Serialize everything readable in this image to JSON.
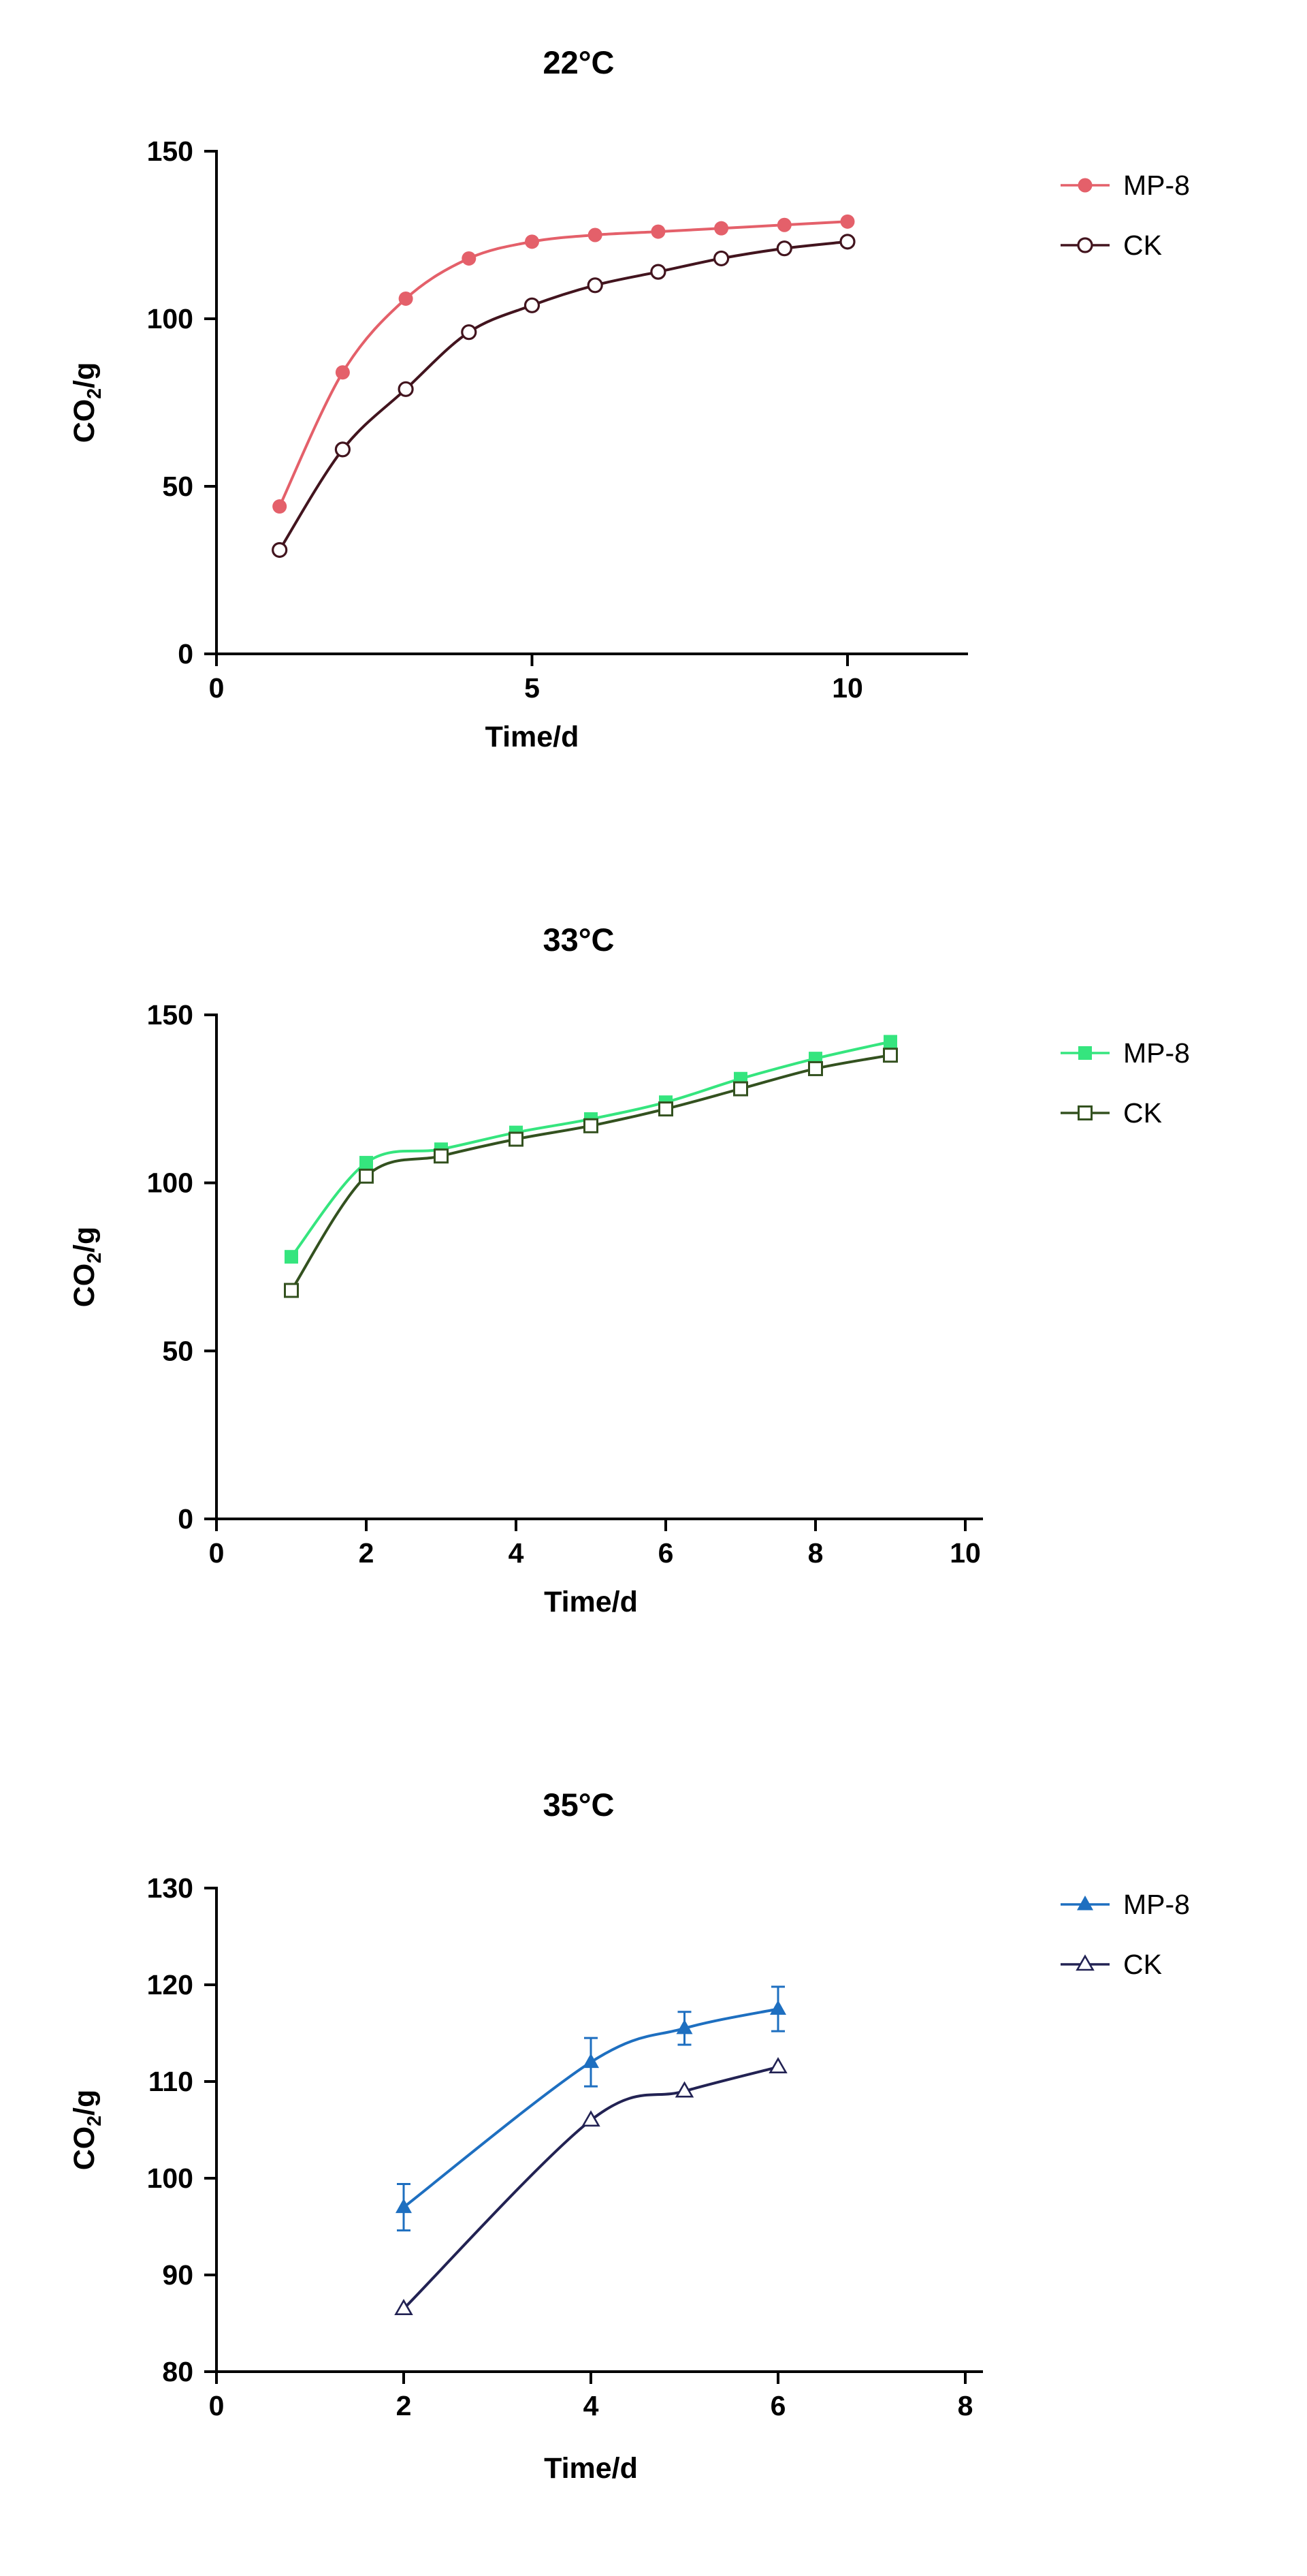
{
  "chart_data": [
    {
      "type": "line",
      "title": "22°C",
      "xlabel": "Time/d",
      "ylabel": {
        "base": "CO",
        "sub": "2",
        "rest": "/g"
      },
      "x_ticks": [
        0,
        5,
        10
      ],
      "y_ticks": [
        0,
        50,
        100,
        150
      ],
      "x_range": [
        0,
        11.9
      ],
      "y_range": [
        0,
        150
      ],
      "legend_position": "right",
      "grid": false,
      "series": [
        {
          "name": "MP-8",
          "color": "#e4606a",
          "marker": "circle-filled",
          "x": [
            1,
            2,
            3,
            4,
            5,
            6,
            7,
            8,
            9,
            10
          ],
          "y": [
            44,
            84,
            106,
            118,
            123,
            125,
            126,
            127,
            128,
            129
          ]
        },
        {
          "name": "CK",
          "color": "#42141e",
          "marker": "circle-open",
          "x": [
            1,
            2,
            3,
            4,
            5,
            6,
            7,
            8,
            9,
            10
          ],
          "y": [
            31,
            61,
            79,
            96,
            104,
            110,
            114,
            118,
            121,
            123
          ]
        }
      ]
    },
    {
      "type": "line",
      "title": "33°C",
      "xlabel": "Time/d",
      "ylabel": {
        "base": "CO",
        "sub": "2",
        "rest": "/g"
      },
      "x_ticks": [
        0,
        2,
        4,
        6,
        8,
        10
      ],
      "y_ticks": [
        0,
        50,
        100,
        150
      ],
      "x_range": [
        0,
        10.2
      ],
      "y_range": [
        0,
        150
      ],
      "legend_position": "right",
      "grid": false,
      "series": [
        {
          "name": "MP-8",
          "color": "#35e57e",
          "marker": "square-filled",
          "x": [
            1,
            2,
            3,
            4,
            5,
            6,
            7,
            8,
            9
          ],
          "y": [
            78,
            106,
            110,
            115,
            119,
            124,
            131,
            137,
            142
          ]
        },
        {
          "name": "CK",
          "color": "#33511f",
          "marker": "square-open",
          "x": [
            1,
            2,
            3,
            4,
            5,
            6,
            7,
            8,
            9
          ],
          "y": [
            68,
            102,
            108,
            113,
            117,
            122,
            128,
            134,
            138
          ]
        }
      ]
    },
    {
      "type": "line",
      "title": "35°C",
      "xlabel": "Time/d",
      "ylabel": {
        "base": "CO",
        "sub": "2",
        "rest": "/g"
      },
      "x_ticks": [
        0,
        2,
        4,
        6,
        8
      ],
      "y_ticks": [
        80,
        90,
        100,
        110,
        120,
        130
      ],
      "x_range": [
        0,
        8.2
      ],
      "y_range": [
        80,
        130
      ],
      "legend_position": "right",
      "grid": false,
      "series": [
        {
          "name": "MP-8",
          "color": "#1e6fc0",
          "marker": "triangle-filled",
          "x": [
            2,
            4,
            5,
            6
          ],
          "y": [
            97,
            112,
            115.5,
            117.5
          ],
          "err": [
            2.4,
            2.5,
            1.7,
            2.3
          ]
        },
        {
          "name": "CK",
          "color": "#222253",
          "marker": "triangle-open",
          "x": [
            2,
            4,
            5,
            6
          ],
          "y": [
            86.5,
            106,
            109,
            111.5
          ]
        }
      ]
    }
  ]
}
